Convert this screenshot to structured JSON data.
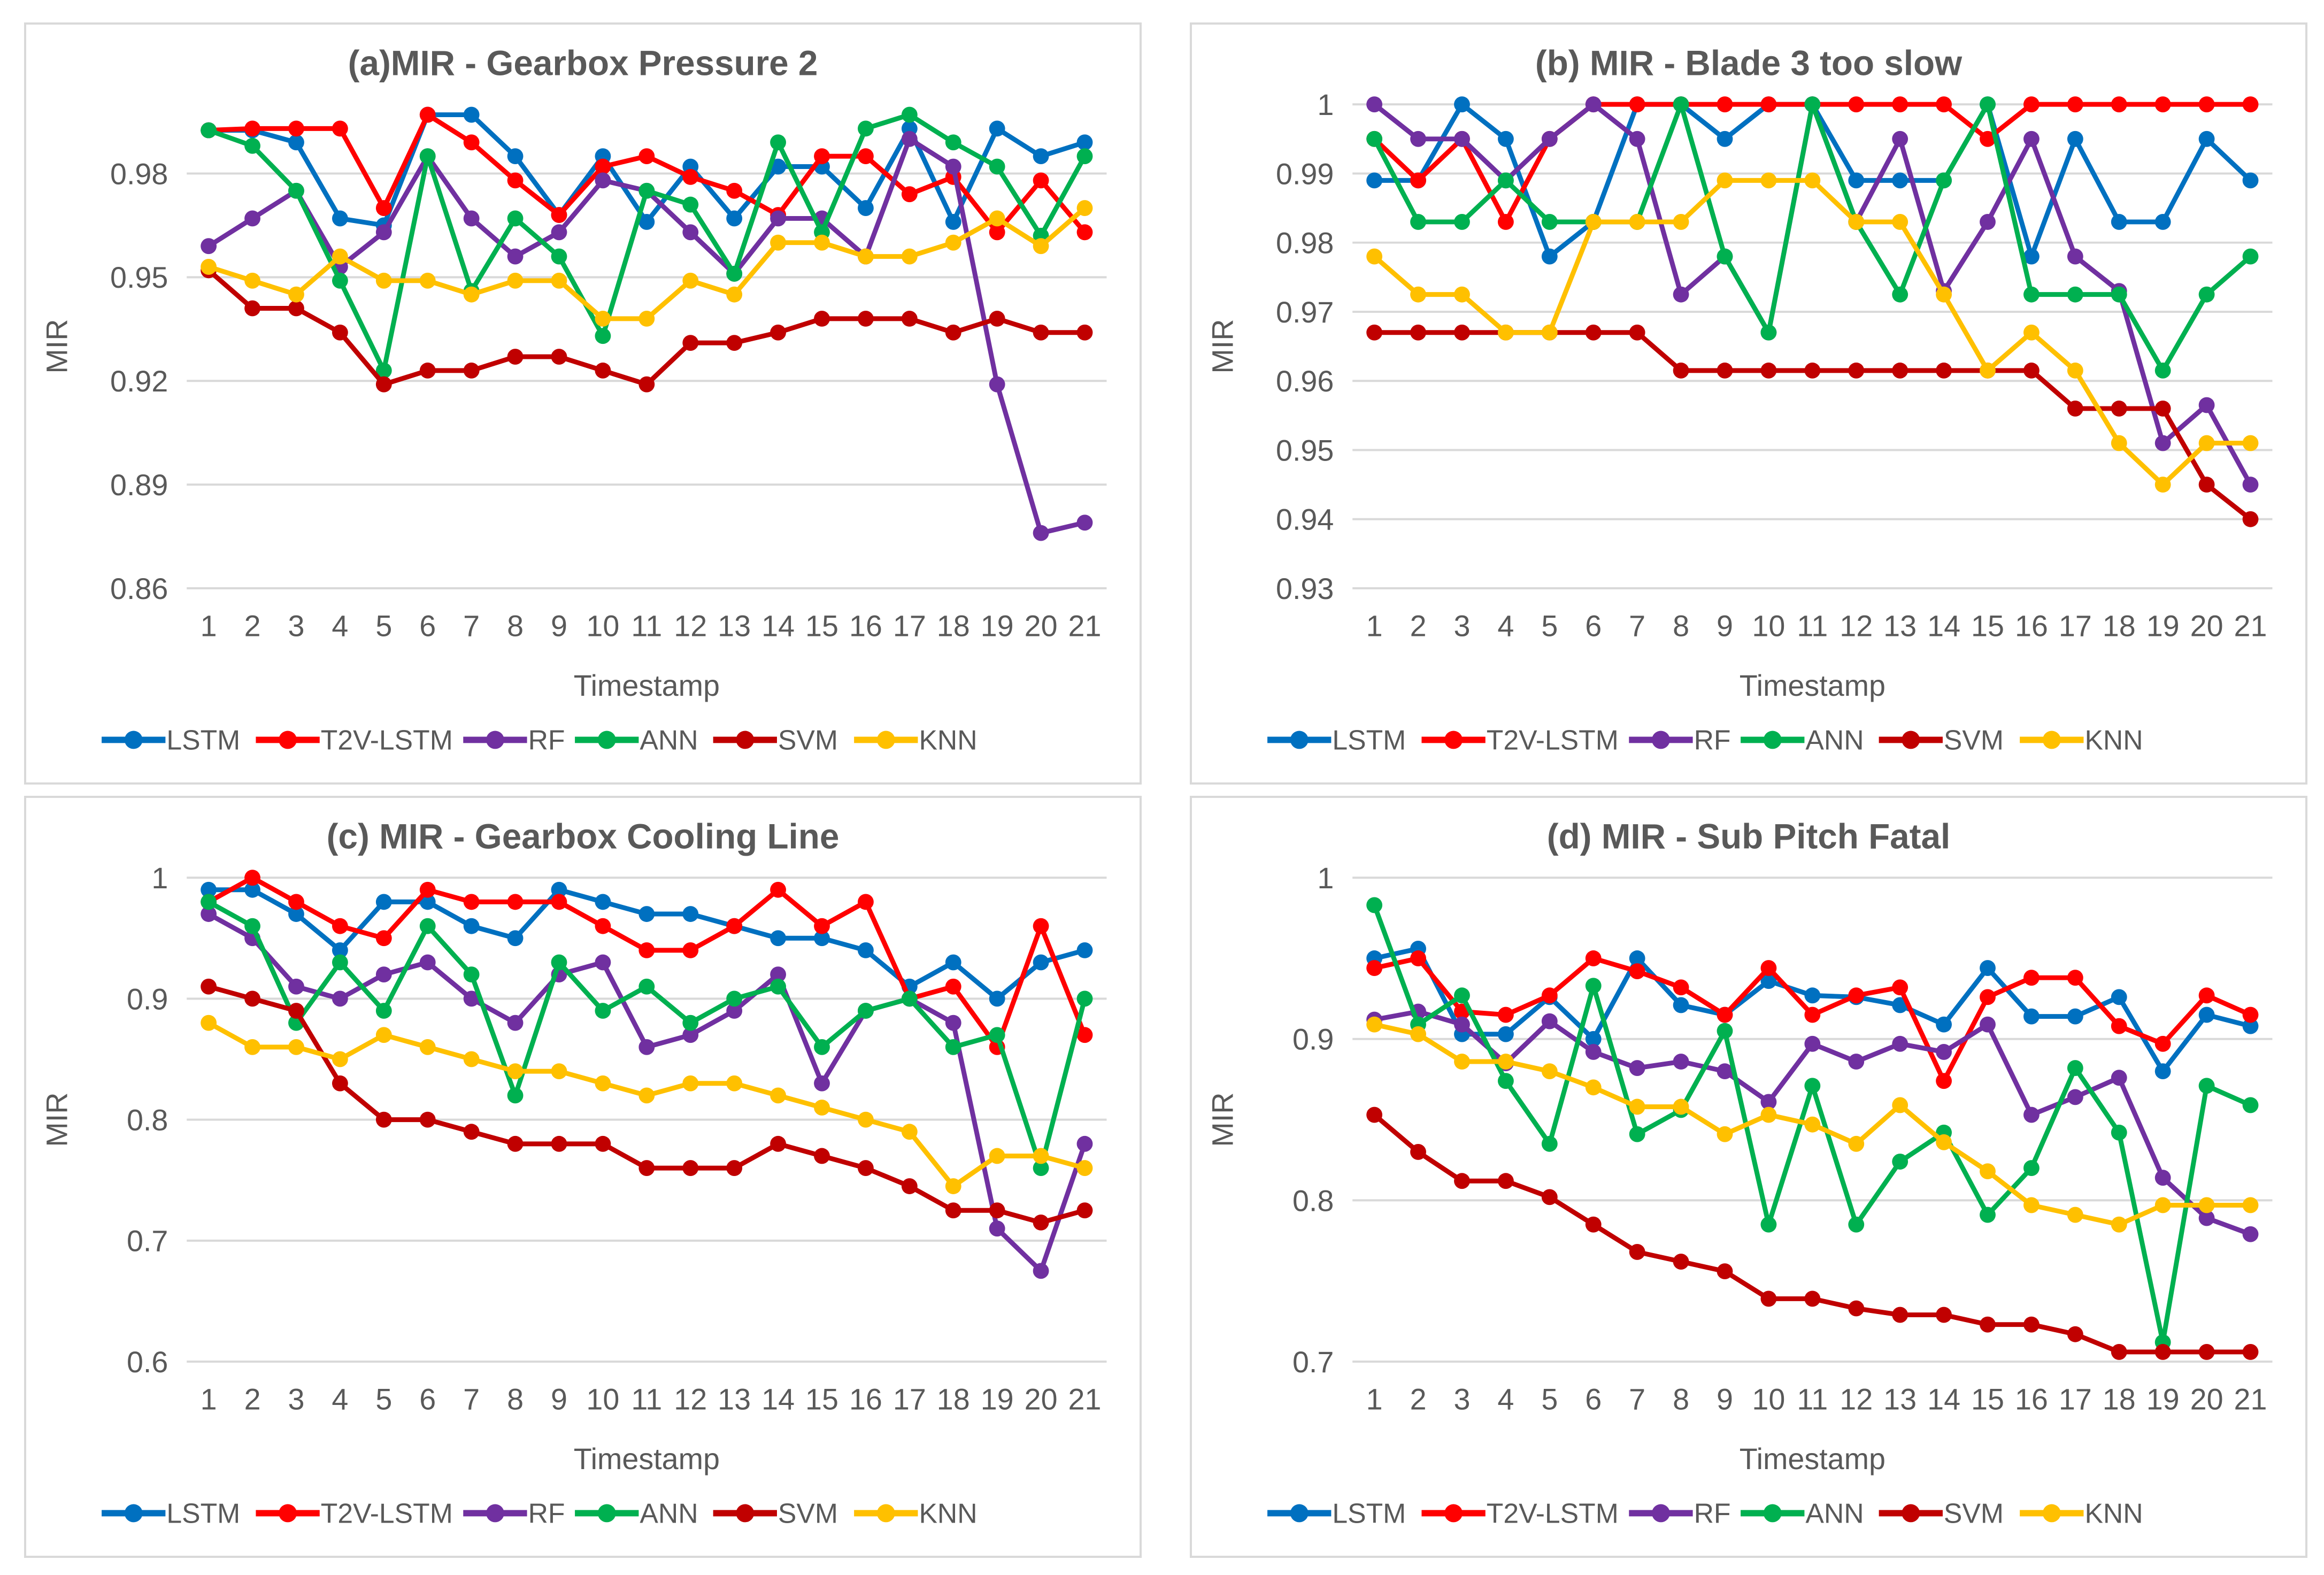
{
  "chart_data": [
    {
      "type": "line",
      "title": "(a)MIR - Gearbox Pressure 2",
      "xlabel": "Timestamp",
      "ylabel": "MIR",
      "ylim": [
        0.86,
        1.0
      ],
      "yticks": [
        0.86,
        0.89,
        0.92,
        0.95,
        0.98
      ],
      "ytick_labels": [
        "0.86",
        "0.89",
        "0.92",
        "0.95",
        "0.98"
      ],
      "grid": true,
      "legend": "bottom",
      "x": [
        "1",
        "2",
        "3",
        "4",
        "5",
        "6",
        "7",
        "8",
        "9",
        "10",
        "11",
        "12",
        "13",
        "14",
        "15",
        "16",
        "17",
        "18",
        "19",
        "20",
        "21"
      ],
      "series": [
        {
          "name": "LSTM",
          "color": "#0070C0",
          "values": [
            0.9925,
            0.9925,
            0.989,
            0.967,
            0.965,
            0.997,
            0.997,
            0.985,
            0.968,
            0.985,
            0.966,
            0.982,
            0.967,
            0.982,
            0.982,
            0.97,
            0.993,
            0.966,
            0.993,
            0.985,
            0.989
          ]
        },
        {
          "name": "T2V-LSTM",
          "color": "#FF0000",
          "values": [
            0.9925,
            0.993,
            0.993,
            0.993,
            0.97,
            0.997,
            0.989,
            0.978,
            0.968,
            0.982,
            0.985,
            0.979,
            0.975,
            0.968,
            0.985,
            0.985,
            0.974,
            0.979,
            0.963,
            0.978,
            0.963
          ]
        },
        {
          "name": "RF",
          "color": "#7030A0",
          "values": [
            0.959,
            0.967,
            0.975,
            0.953,
            0.963,
            0.985,
            0.967,
            0.956,
            0.963,
            0.978,
            0.975,
            0.963,
            0.951,
            0.967,
            0.967,
            0.956,
            0.99,
            0.982,
            0.919,
            0.876,
            0.879
          ]
        },
        {
          "name": "ANN",
          "color": "#00B050",
          "values": [
            0.9925,
            0.988,
            0.975,
            0.949,
            0.923,
            0.985,
            0.946,
            0.967,
            0.956,
            0.933,
            0.975,
            0.971,
            0.951,
            0.989,
            0.963,
            0.993,
            0.997,
            0.989,
            0.982,
            0.962,
            0.985
          ]
        },
        {
          "name": "SVM",
          "color": "#C00000",
          "values": [
            0.952,
            0.941,
            0.941,
            0.934,
            0.919,
            0.923,
            0.923,
            0.927,
            0.927,
            0.923,
            0.919,
            0.931,
            0.931,
            0.934,
            0.938,
            0.938,
            0.938,
            0.934,
            0.938,
            0.934,
            0.934
          ]
        },
        {
          "name": "KNN",
          "color": "#FFC000",
          "values": [
            0.953,
            0.949,
            0.945,
            0.956,
            0.949,
            0.949,
            0.945,
            0.949,
            0.949,
            0.938,
            0.938,
            0.949,
            0.945,
            0.96,
            0.96,
            0.956,
            0.956,
            0.96,
            0.967,
            0.959,
            0.97
          ]
        }
      ]
    },
    {
      "type": "line",
      "title": "(b) MIR - Blade 3 too slow",
      "xlabel": "Timestamp",
      "ylabel": "MIR",
      "ylim": [
        0.93,
        1.0
      ],
      "yticks": [
        0.93,
        0.94,
        0.95,
        0.96,
        0.97,
        0.98,
        0.99,
        1.0
      ],
      "ytick_labels": [
        "0.93",
        "0.94",
        "0.95",
        "0.96",
        "0.97",
        "0.98",
        "0.99",
        "1"
      ],
      "grid": true,
      "legend": "bottom",
      "x": [
        "1",
        "2",
        "3",
        "4",
        "5",
        "6",
        "7",
        "8",
        "9",
        "10",
        "11",
        "12",
        "13",
        "14",
        "15",
        "16",
        "17",
        "18",
        "19",
        "20",
        "21"
      ],
      "series": [
        {
          "name": "LSTM",
          "color": "#0070C0",
          "values": [
            0.989,
            0.989,
            1.0,
            0.995,
            0.978,
            0.983,
            1.0,
            1.0,
            0.995,
            1.0,
            1.0,
            0.989,
            0.989,
            0.989,
            1.0,
            0.978,
            0.995,
            0.983,
            0.983,
            0.995,
            0.989
          ]
        },
        {
          "name": "T2V-LSTM",
          "color": "#FF0000",
          "values": [
            0.995,
            0.989,
            0.995,
            0.983,
            0.995,
            1.0,
            1.0,
            1.0,
            1.0,
            1.0,
            1.0,
            1.0,
            1.0,
            1.0,
            0.995,
            1.0,
            1.0,
            1.0,
            1.0,
            1.0,
            1.0
          ]
        },
        {
          "name": "RF",
          "color": "#7030A0",
          "values": [
            1.0,
            0.995,
            0.995,
            0.989,
            0.995,
            1.0,
            0.995,
            0.9725,
            0.978,
            0.967,
            1.0,
            0.983,
            0.995,
            0.973,
            0.983,
            0.995,
            0.978,
            0.973,
            0.951,
            0.9565,
            0.945
          ]
        },
        {
          "name": "ANN",
          "color": "#00B050",
          "values": [
            0.995,
            0.983,
            0.983,
            0.989,
            0.983,
            0.983,
            0.983,
            1.0,
            0.978,
            0.967,
            1.0,
            0.983,
            0.9725,
            0.989,
            1.0,
            0.9725,
            0.9725,
            0.9725,
            0.9615,
            0.9725,
            0.978
          ]
        },
        {
          "name": "SVM",
          "color": "#C00000",
          "values": [
            0.967,
            0.967,
            0.967,
            0.967,
            0.967,
            0.967,
            0.967,
            0.9615,
            0.9615,
            0.9615,
            0.9615,
            0.9615,
            0.9615,
            0.9615,
            0.9615,
            0.9615,
            0.956,
            0.956,
            0.956,
            0.945,
            0.94
          ]
        },
        {
          "name": "KNN",
          "color": "#FFC000",
          "values": [
            0.978,
            0.9725,
            0.9725,
            0.967,
            0.967,
            0.983,
            0.983,
            0.983,
            0.989,
            0.989,
            0.989,
            0.983,
            0.983,
            0.9725,
            0.9615,
            0.967,
            0.9615,
            0.951,
            0.945,
            0.951,
            0.951
          ]
        }
      ]
    },
    {
      "type": "line",
      "title": "(c) MIR - Gearbox Cooling Line",
      "xlabel": "Timestamp",
      "ylabel": "MIR",
      "ylim": [
        0.6,
        1.0
      ],
      "yticks": [
        0.6,
        0.7,
        0.8,
        0.9,
        1.0
      ],
      "ytick_labels": [
        "0.6",
        "0.7",
        "0.8",
        "0.9",
        "1"
      ],
      "grid": true,
      "legend": "bottom",
      "x": [
        "1",
        "2",
        "3",
        "4",
        "5",
        "6",
        "7",
        "8",
        "9",
        "10",
        "11",
        "12",
        "13",
        "14",
        "15",
        "16",
        "17",
        "18",
        "19",
        "20",
        "21"
      ],
      "series": [
        {
          "name": "LSTM",
          "color": "#0070C0",
          "values": [
            0.99,
            0.99,
            0.97,
            0.94,
            0.98,
            0.98,
            0.96,
            0.95,
            0.99,
            0.98,
            0.97,
            0.97,
            0.96,
            0.95,
            0.95,
            0.94,
            0.91,
            0.93,
            0.9,
            0.93,
            0.94
          ]
        },
        {
          "name": "T2V-LSTM",
          "color": "#FF0000",
          "values": [
            0.98,
            1.0,
            0.98,
            0.96,
            0.95,
            0.99,
            0.98,
            0.98,
            0.98,
            0.96,
            0.94,
            0.94,
            0.96,
            0.99,
            0.96,
            0.98,
            0.9,
            0.91,
            0.86,
            0.96,
            0.87
          ]
        },
        {
          "name": "RF",
          "color": "#7030A0",
          "values": [
            0.97,
            0.95,
            0.91,
            0.9,
            0.92,
            0.93,
            0.9,
            0.88,
            0.92,
            0.93,
            0.86,
            0.87,
            0.89,
            0.92,
            0.83,
            0.89,
            0.9,
            0.88,
            0.71,
            0.675,
            0.78
          ]
        },
        {
          "name": "ANN",
          "color": "#00B050",
          "values": [
            0.98,
            0.96,
            0.88,
            0.93,
            0.89,
            0.96,
            0.92,
            0.82,
            0.93,
            0.89,
            0.91,
            0.88,
            0.9,
            0.91,
            0.86,
            0.89,
            0.9,
            0.86,
            0.87,
            0.76,
            0.9
          ]
        },
        {
          "name": "SVM",
          "color": "#C00000",
          "values": [
            0.91,
            0.9,
            0.89,
            0.83,
            0.8,
            0.8,
            0.79,
            0.78,
            0.78,
            0.78,
            0.76,
            0.76,
            0.76,
            0.78,
            0.77,
            0.76,
            0.745,
            0.725,
            0.725,
            0.715,
            0.725
          ]
        },
        {
          "name": "KNN",
          "color": "#FFC000",
          "values": [
            0.88,
            0.86,
            0.86,
            0.85,
            0.87,
            0.86,
            0.85,
            0.84,
            0.84,
            0.83,
            0.82,
            0.83,
            0.83,
            0.82,
            0.81,
            0.8,
            0.79,
            0.745,
            0.77,
            0.77,
            0.76
          ]
        }
      ]
    },
    {
      "type": "line",
      "title": "(d) MIR - Sub Pitch Fatal",
      "xlabel": "Timestamp",
      "ylabel": "MIR",
      "ylim": [
        0.7,
        1.0
      ],
      "yticks": [
        0.7,
        0.8,
        0.9,
        1.0
      ],
      "ytick_labels": [
        "0.7",
        "0.8",
        "0.9",
        "1"
      ],
      "grid": true,
      "legend": "bottom",
      "x": [
        "1",
        "2",
        "3",
        "4",
        "5",
        "6",
        "7",
        "8",
        "9",
        "10",
        "11",
        "12",
        "13",
        "14",
        "15",
        "16",
        "17",
        "18",
        "19",
        "20",
        "21"
      ],
      "series": [
        {
          "name": "LSTM",
          "color": "#0070C0",
          "values": [
            0.95,
            0.956,
            0.903,
            0.903,
            0.926,
            0.9,
            0.95,
            0.921,
            0.915,
            0.936,
            0.927,
            0.926,
            0.921,
            0.909,
            0.944,
            0.914,
            0.914,
            0.926,
            0.88,
            0.915,
            0.908
          ]
        },
        {
          "name": "T2V-LSTM",
          "color": "#FF0000",
          "values": [
            0.944,
            0.95,
            0.917,
            0.915,
            0.927,
            0.95,
            0.942,
            0.932,
            0.915,
            0.944,
            0.915,
            0.927,
            0.932,
            0.874,
            0.926,
            0.938,
            0.938,
            0.908,
            0.897,
            0.927,
            0.915
          ]
        },
        {
          "name": "RF",
          "color": "#7030A0",
          "values": [
            0.912,
            0.917,
            0.909,
            0.885,
            0.911,
            0.892,
            0.882,
            0.886,
            0.88,
            0.861,
            0.897,
            0.886,
            0.897,
            0.892,
            0.909,
            0.853,
            0.864,
            0.876,
            0.814,
            0.789,
            0.779
          ]
        },
        {
          "name": "ANN",
          "color": "#00B050",
          "values": [
            0.983,
            0.909,
            0.927,
            0.874,
            0.835,
            0.933,
            0.841,
            0.856,
            0.905,
            0.785,
            0.871,
            0.785,
            0.824,
            0.842,
            0.791,
            0.82,
            0.882,
            0.842,
            0.712,
            0.871,
            0.859
          ]
        },
        {
          "name": "SVM",
          "color": "#C00000",
          "values": [
            0.853,
            0.83,
            0.812,
            0.812,
            0.802,
            0.785,
            0.768,
            0.762,
            0.756,
            0.739,
            0.739,
            0.733,
            0.729,
            0.729,
            0.723,
            0.723,
            0.717,
            0.706,
            0.706,
            0.706,
            0.706
          ]
        },
        {
          "name": "KNN",
          "color": "#FFC000",
          "values": [
            0.909,
            0.903,
            0.886,
            0.886,
            0.88,
            0.87,
            0.858,
            0.858,
            0.841,
            0.853,
            0.847,
            0.835,
            0.859,
            0.836,
            0.818,
            0.797,
            0.791,
            0.785,
            0.797,
            0.797,
            0.797
          ]
        }
      ]
    }
  ]
}
